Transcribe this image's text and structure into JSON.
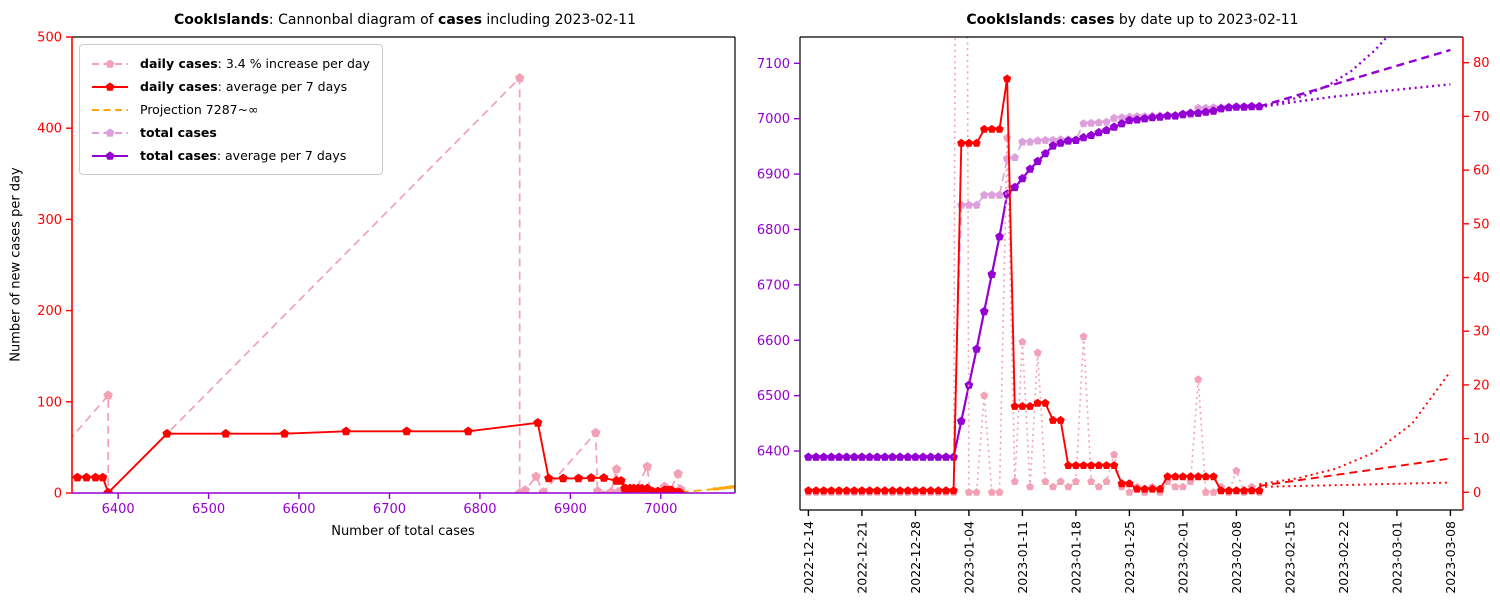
{
  "app": {
    "description": "CookIslands covid cases figure",
    "date_shown": "2023-02-11"
  },
  "colors": {
    "red": "#ff0000",
    "pink": "#f2a1b6",
    "plum": "#dda0dd",
    "purple": "#9400d3",
    "orange": "#ffa500",
    "black": "#000000",
    "legend_border": "#cccccc",
    "background": "#ffffff"
  },
  "chart_data": [
    {
      "type": "line",
      "name": "cannonball-diagram",
      "title_parts": [
        {
          "t": "CookIslands",
          "b": true
        },
        {
          "t": ": Cannonbal diagram of ",
          "b": false
        },
        {
          "t": "cases",
          "b": true
        },
        {
          "t": " including 2023-02-11",
          "b": false
        }
      ],
      "xlabel": "Number of total cases",
      "ylabel": "Number of new cases per day",
      "xlim": [
        6349,
        7082
      ],
      "ylim": [
        0,
        500
      ],
      "xticks": [
        6400,
        6500,
        6600,
        6700,
        6800,
        6900,
        7000
      ],
      "yticks": [
        0,
        100,
        200,
        300,
        400,
        500
      ],
      "legend": [
        {
          "bold": "daily cases",
          "rest": ": 3.4 % increase per day",
          "color": "pink",
          "line": "dashed",
          "markers": true
        },
        {
          "bold": "daily cases",
          "rest": ": average per 7 days",
          "color": "red",
          "line": "solid",
          "markers": true
        },
        {
          "bold": "",
          "rest": "Projection 7287~∞",
          "color": "orange",
          "line": "dashed",
          "markers": false
        },
        {
          "bold": "total cases",
          "rest": "",
          "color": "plum",
          "line": "dashed",
          "markers": true
        },
        {
          "bold": "total cases",
          "rest": ": average per 7 days",
          "color": "purple",
          "line": "solid",
          "markers": true
        }
      ],
      "series": [
        {
          "id": "daily-cases-raw",
          "color": "pink",
          "line": "dashed",
          "markers": true,
          "points": [
            [
              6345,
              57
            ],
            [
              6389,
              107
            ],
            [
              6389,
              0
            ],
            [
              6844,
              455
            ],
            [
              6844,
              0
            ],
            [
              6850,
              3
            ],
            [
              6862,
              18
            ],
            [
              6870,
              1
            ],
            [
              6928,
              66
            ],
            [
              6930,
              2
            ],
            [
              6945,
              1
            ],
            [
              6951,
              26
            ],
            [
              6953,
              1
            ],
            [
              6962,
              2
            ],
            [
              6971,
              1
            ],
            [
              6985,
              29
            ],
            [
              6988,
              1
            ],
            [
              6996,
              2
            ],
            [
              7004,
              7
            ],
            [
              7006,
              1
            ],
            [
              7010,
              2
            ],
            [
              7019,
              21
            ],
            [
              7020,
              1
            ],
            [
              7021,
              2
            ],
            [
              7022,
              4
            ],
            [
              7022,
              0
            ]
          ]
        },
        {
          "id": "daily-cases-avg",
          "color": "red",
          "line": "solid",
          "markers": true,
          "points": [
            [
              6345,
              17
            ],
            [
              6355,
              17
            ],
            [
              6365,
              17
            ],
            [
              6375,
              17
            ],
            [
              6383,
              17
            ],
            [
              6389,
              0.3
            ],
            [
              6454,
              65
            ],
            [
              6519,
              65
            ],
            [
              6584,
              65
            ],
            [
              6652,
              67.6
            ],
            [
              6719,
              67.6
            ],
            [
              6787,
              67.6
            ],
            [
              6864,
              77
            ],
            [
              6876,
              16
            ],
            [
              6892,
              16
            ],
            [
              6909,
              16
            ],
            [
              6923,
              16.6
            ],
            [
              6937,
              16.6
            ],
            [
              6951,
              13.4
            ],
            [
              6956,
              13.4
            ],
            [
              6960,
              5
            ],
            [
              6961,
              5
            ],
            [
              6966,
              5
            ],
            [
              6970,
              5
            ],
            [
              6975,
              5
            ],
            [
              6979,
              5
            ],
            [
              6985,
              5
            ],
            [
              6991,
              1.6
            ],
            [
              6997,
              1.6
            ],
            [
              6998,
              0.6
            ],
            [
              7000,
              0.6
            ],
            [
              7002,
              0.6
            ],
            [
              7003,
              0.6
            ],
            [
              7004,
              2.9
            ],
            [
              7005,
              2.9
            ],
            [
              7005,
              2.9
            ],
            [
              7005,
              2.9
            ],
            [
              7008,
              2.9
            ],
            [
              7010,
              2.9
            ],
            [
              7012,
              2.9
            ],
            [
              7014,
              0.3
            ],
            [
              7016,
              0.3
            ],
            [
              7018,
              0.3
            ],
            [
              7020,
              0.3
            ],
            [
              7021,
              0.3
            ],
            [
              7021,
              0.3
            ]
          ]
        },
        {
          "id": "projection",
          "color": "orange",
          "line": "dashed",
          "markers": false,
          "dash_markers_last": 5,
          "points": [
            [
              7022,
              1.2
            ],
            [
              7032,
              1.9
            ],
            [
              7042,
              2.7
            ],
            [
              7052,
              3.6
            ],
            [
              7061,
              4.5
            ],
            [
              7068,
              5.3
            ],
            [
              7074,
              6.0
            ],
            [
              7078,
              6.5
            ],
            [
              7081,
              6.9
            ]
          ]
        }
      ]
    },
    {
      "type": "line",
      "name": "cases-by-date",
      "title_parts": [
        {
          "t": "CookIslands",
          "b": true
        },
        {
          "t": ": ",
          "b": false
        },
        {
          "t": "cases",
          "b": true
        },
        {
          "t": " by date up to 2023-02-11",
          "b": false
        }
      ],
      "date_start": "2022-12-14",
      "date_end_data": "2023-02-11",
      "xtick_labels": [
        "2022-12-14",
        "2022-12-21",
        "2022-12-28",
        "2023-01-04",
        "2023-01-11",
        "2023-01-18",
        "2023-01-25",
        "2023-02-01",
        "2023-02-08",
        "2023-02-15",
        "2023-02-22",
        "2023-03-01",
        "2023-03-08"
      ],
      "xtick_days": [
        0,
        7,
        14,
        21,
        28,
        35,
        42,
        49,
        56,
        63,
        70,
        77,
        84
      ],
      "left_axis": {
        "ticks": [
          6400,
          6500,
          6600,
          6700,
          6800,
          6900,
          7000,
          7100
        ],
        "color": "purple"
      },
      "right_axis": {
        "ticks": [
          0,
          10,
          20,
          30,
          40,
          50,
          60,
          70,
          80
        ],
        "color": "red"
      },
      "series": [
        {
          "id": "total-cases-raw",
          "color": "plum",
          "axis": "left",
          "line": "dashed",
          "markers": true,
          "values": [
            6389,
            6389,
            6389,
            6389,
            6389,
            6389,
            6389,
            6389,
            6389,
            6389,
            6389,
            6389,
            6389,
            6389,
            6389,
            6389,
            6389,
            6389,
            6389,
            6389,
            6844,
            6844,
            6844,
            6862,
            6862,
            6862,
            6928,
            6930,
            6958,
            6958,
            6960,
            6961,
            6961,
            6962,
            6962,
            6962,
            6991,
            6992,
            6993,
            6994,
            7001,
            7002,
            7003,
            7004,
            7004,
            7005,
            7005,
            7005,
            7006,
            7006,
            7007,
            7019,
            7019,
            7020,
            7020,
            7021,
            7022,
            7022,
            7022,
            7022
          ]
        },
        {
          "id": "total-cases-avg",
          "color": "purple",
          "axis": "left",
          "line": "solid",
          "markers": true,
          "values": [
            6389,
            6389,
            6389,
            6389,
            6389,
            6389,
            6389,
            6389,
            6389,
            6389,
            6389,
            6389,
            6389,
            6389,
            6389,
            6389,
            6389,
            6389,
            6389,
            6389,
            6454,
            6519,
            6584,
            6652,
            6719,
            6787,
            6864,
            6876,
            6892,
            6909,
            6923,
            6937,
            6951,
            6956,
            6960,
            6961,
            6966,
            6970,
            6975,
            6979,
            6985,
            6991,
            6997,
            6998,
            7000,
            7002,
            7003,
            7005,
            7005,
            7008,
            7010,
            7010,
            7012,
            7014,
            7018,
            7020,
            7021,
            7021,
            7022,
            7022
          ]
        },
        {
          "id": "daily-cases-raw",
          "color": "pink",
          "axis": "right",
          "line": "dotted",
          "markers": true,
          "values": [
            0,
            0,
            0,
            0,
            0,
            0,
            0,
            0,
            0,
            0,
            0,
            0,
            0,
            0,
            0,
            0,
            0,
            0,
            0,
            0,
            455,
            0,
            0,
            18,
            0,
            0,
            66,
            2,
            28,
            1,
            26,
            2,
            1,
            2,
            1,
            2,
            29,
            2,
            1,
            2,
            7,
            1,
            0,
            1,
            0,
            1,
            0,
            2,
            1,
            1,
            2,
            21,
            0,
            0,
            1,
            0,
            4,
            0,
            1,
            0
          ]
        },
        {
          "id": "daily-cases-avg",
          "color": "red",
          "axis": "right",
          "line": "solid",
          "markers": true,
          "values": [
            0.3,
            0.3,
            0.3,
            0.3,
            0.3,
            0.3,
            0.3,
            0.3,
            0.3,
            0.3,
            0.3,
            0.3,
            0.3,
            0.3,
            0.3,
            0.3,
            0.3,
            0.3,
            0.3,
            0.3,
            65,
            65,
            65,
            67.6,
            67.6,
            67.6,
            77,
            16,
            16,
            16,
            16.6,
            16.6,
            13.4,
            13.4,
            5,
            5,
            5,
            5,
            5,
            5,
            5,
            1.6,
            1.6,
            0.6,
            0.6,
            0.6,
            0.6,
            2.9,
            2.9,
            2.9,
            2.9,
            2.9,
            2.9,
            2.9,
            0.3,
            0.3,
            0.3,
            0.3,
            0.3,
            0.3
          ]
        }
      ],
      "projections": [
        {
          "id": "proj-total-exponential",
          "color": "purple",
          "axis": "left",
          "line": "dotted",
          "points": [
            [
              59,
              7022
            ],
            [
              62,
              7030
            ],
            [
              65,
              7042
            ],
            [
              68,
              7060
            ],
            [
              71,
              7086
            ],
            [
              74,
              7122
            ],
            [
              76,
              7152
            ]
          ]
        },
        {
          "id": "proj-total-linear",
          "color": "purple",
          "axis": "left",
          "line": "dashed",
          "points": [
            [
              59,
              7022
            ],
            [
              84,
              7124
            ]
          ]
        },
        {
          "id": "proj-total-saturating",
          "color": "purple",
          "axis": "left",
          "line": "dotted",
          "points": [
            [
              59,
              7021
            ],
            [
              64,
              7031
            ],
            [
              69,
              7040
            ],
            [
              74,
              7048
            ],
            [
              79,
              7055
            ],
            [
              84,
              7062
            ]
          ]
        },
        {
          "id": "proj-daily-exponential",
          "color": "red",
          "axis": "right",
          "line": "dotted",
          "points": [
            [
              59,
              1.5
            ],
            [
              64,
              2.6
            ],
            [
              69,
              4.4
            ],
            [
              74,
              7.4
            ],
            [
              79,
              12.8
            ],
            [
              84,
              22.5
            ]
          ]
        },
        {
          "id": "proj-daily-linear",
          "color": "red",
          "axis": "right",
          "line": "dashed",
          "points": [
            [
              59,
              1.2
            ],
            [
              84,
              6.3
            ]
          ]
        },
        {
          "id": "proj-daily-saturating",
          "color": "red",
          "axis": "right",
          "line": "dotted",
          "points": [
            [
              59,
              1.0
            ],
            [
              84,
              1.8
            ]
          ]
        }
      ]
    }
  ]
}
